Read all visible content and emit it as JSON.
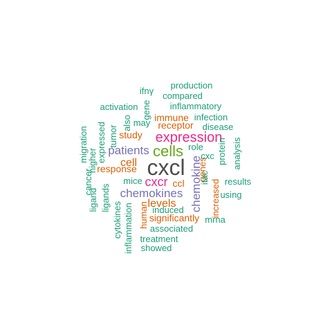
{
  "word_cloud": {
    "colors": {
      "teal": "#1b9e77",
      "orange": "#d95f02",
      "purple": "#7570b3",
      "magenta": "#e7298a",
      "green": "#66a61e",
      "dark": "#4d4d4d"
    },
    "words": [
      {
        "text": "cxcl",
        "color": "#4d4d4d",
        "rotated": false
      },
      {
        "text": "cells",
        "color": "#66a61e",
        "rotated": false
      },
      {
        "text": "expression",
        "color": "#e7298a",
        "rotated": false
      },
      {
        "text": "chemokines",
        "color": "#7570b3",
        "rotated": false
      },
      {
        "text": "cxcr",
        "color": "#e7298a",
        "rotated": false
      },
      {
        "text": "patients",
        "color": "#7570b3",
        "rotated": false
      },
      {
        "text": "levels",
        "color": "#d95f02",
        "rotated": false
      },
      {
        "text": "chemokine",
        "color": "#7570b3",
        "rotated": true
      },
      {
        "text": "cell",
        "color": "#d95f02",
        "rotated": false
      },
      {
        "text": "receptor",
        "color": "#d95f02",
        "rotated": false
      },
      {
        "text": "immune",
        "color": "#d95f02",
        "rotated": false
      },
      {
        "text": "response",
        "color": "#d95f02",
        "rotated": false
      },
      {
        "text": "study",
        "color": "#d95f02",
        "rotated": false
      },
      {
        "text": "ccl",
        "color": "#d95f02",
        "rotated": false
      },
      {
        "text": "human",
        "color": "#d95f02",
        "rotated": true
      },
      {
        "text": "increased",
        "color": "#d95f02",
        "rotated": true
      },
      {
        "text": "significantly",
        "color": "#d95f02",
        "rotated": false
      },
      {
        "text": "genes",
        "color": "#d95f02",
        "rotated": true
      },
      {
        "text": "production",
        "color": "#1b9e77",
        "rotated": false
      },
      {
        "text": "ifnγ",
        "color": "#1b9e77",
        "rotated": false
      },
      {
        "text": "compared",
        "color": "#1b9e77",
        "rotated": false
      },
      {
        "text": "activation",
        "color": "#1b9e77",
        "rotated": false
      },
      {
        "text": "gene",
        "color": "#1b9e77",
        "rotated": true
      },
      {
        "text": "inflammatory",
        "color": "#1b9e77",
        "rotated": false
      },
      {
        "text": "also",
        "color": "#1b9e77",
        "rotated": true
      },
      {
        "text": "may",
        "color": "#1b9e77",
        "rotated": false
      },
      {
        "text": "infection",
        "color": "#1b9e77",
        "rotated": false
      },
      {
        "text": "tumor",
        "color": "#1b9e77",
        "rotated": true
      },
      {
        "text": "disease",
        "color": "#1b9e77",
        "rotated": false
      },
      {
        "text": "migration",
        "color": "#1b9e77",
        "rotated": true
      },
      {
        "text": "expressed",
        "color": "#1b9e77",
        "rotated": true
      },
      {
        "text": "higher",
        "color": "#1b9e77",
        "rotated": true
      },
      {
        "text": "role",
        "color": "#1b9e77",
        "rotated": false
      },
      {
        "text": "protein",
        "color": "#1b9e77",
        "rotated": true
      },
      {
        "text": "analysis",
        "color": "#1b9e77",
        "rotated": true
      },
      {
        "text": "cxc",
        "color": "#1b9e77",
        "rotated": false
      },
      {
        "text": "itac",
        "color": "#1b9e77",
        "rotated": true
      },
      {
        "text": "ligand",
        "color": "#1b9e77",
        "rotated": true
      },
      {
        "text": "cancer",
        "color": "#1b9e77",
        "rotated": true
      },
      {
        "text": "ligands",
        "color": "#1b9e77",
        "rotated": true
      },
      {
        "text": "mice",
        "color": "#1b9e77",
        "rotated": false
      },
      {
        "text": "results",
        "color": "#1b9e77",
        "rotated": false
      },
      {
        "text": "using",
        "color": "#1b9e77",
        "rotated": false
      },
      {
        "text": "cytokines",
        "color": "#1b9e77",
        "rotated": true
      },
      {
        "text": "inflammation",
        "color": "#1b9e77",
        "rotated": true
      },
      {
        "text": "induced",
        "color": "#1b9e77",
        "rotated": false
      },
      {
        "text": "mrna",
        "color": "#1b9e77",
        "rotated": false
      },
      {
        "text": "associated",
        "color": "#1b9e77",
        "rotated": false
      },
      {
        "text": "treatment",
        "color": "#1b9e77",
        "rotated": false
      },
      {
        "text": "showed",
        "color": "#1b9e77",
        "rotated": false
      }
    ]
  }
}
